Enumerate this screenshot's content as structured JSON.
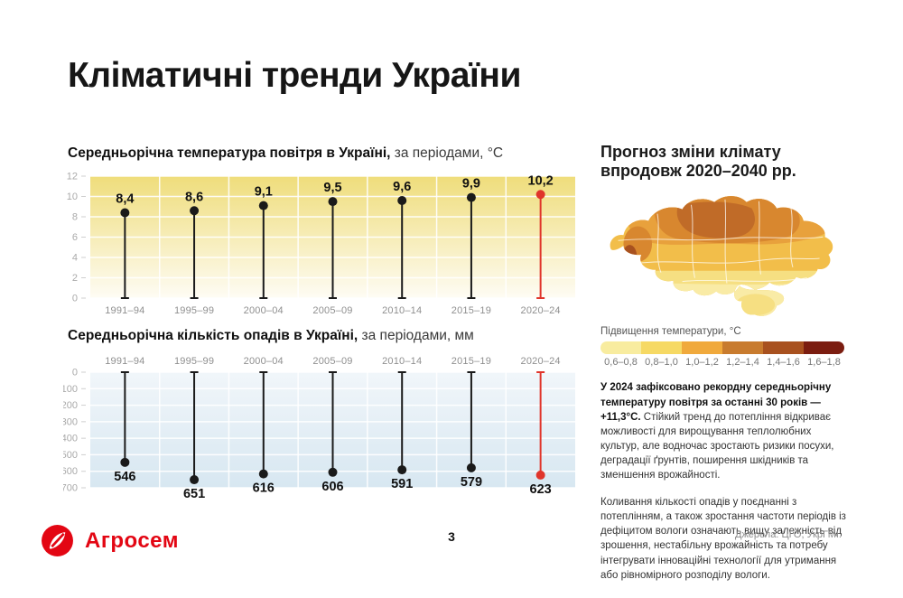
{
  "page": {
    "title": "Кліматичні тренди України",
    "page_number": "3",
    "sources": "Джерела: ЦГО, УкрГМІ."
  },
  "logo": {
    "name": "Агросем",
    "brand_color": "#e30613"
  },
  "charts": {
    "temperature": {
      "title_bold": "Середньорічна температура повітря в Україні,",
      "title_rest": " за періодами, °С"
    },
    "precipitation": {
      "title_bold": "Середньорічна кількість опадів в Україні,",
      "title_rest": " за періодами, мм"
    }
  },
  "forecast": {
    "heading_line1": "Прогноз зміни клімату",
    "heading_line2": "впродовж 2020–2040 рр.",
    "legend_title": "Підвищення температури, °С",
    "legend_labels": [
      "0,6–0,8",
      "0,8–1,0",
      "1,0–1,2",
      "1,2–1,4",
      "1,4–1,6",
      "1,6–1,8"
    ],
    "legend_colors": [
      "#F8EC9F",
      "#F6D964",
      "#F0A93C",
      "#C87B2E",
      "#A8511F",
      "#7B1D10"
    ],
    "para1_bold": "У 2024 зафіксовано рекордну середньорічну температуру повітря за останні 30 років — +11,3°С.",
    "para1_rest": "Стійкий тренд до потепління відкриває можливості для вирощування теплолюбних культур, але водночас зростають ризики посухи, деградації ґрунтів, поширення шкідників та зменшення врожайності.",
    "para2": "Коливання кількості опадів у поєднанні з потеплінням, а також зростання частоти періодів із дефіцитом вологи означають вищу залежність від зрошення, нестабільну врожайність та потребу інтегрувати інноваційні технології для утримання або рівномірного розподілу вологи."
  },
  "chart_data": [
    {
      "type": "lollipop",
      "direction": "up",
      "title": "Середньорічна температура повітря в Україні, за періодами, °С",
      "ylabel": "°С",
      "categories": [
        "1991–94",
        "1995–99",
        "2000–04",
        "2005–09",
        "2010–14",
        "2015–19",
        "2020–24"
      ],
      "values": [
        8.4,
        8.6,
        9.1,
        9.5,
        9.6,
        9.9,
        10.2
      ],
      "labels": [
        "8,4",
        "8,6",
        "9,1",
        "9,5",
        "9,6",
        "9,9",
        "10,2"
      ],
      "ylim": [
        0,
        12
      ],
      "yticks": [
        0,
        2,
        4,
        6,
        8,
        10,
        12
      ],
      "grid": true,
      "highlight_index": 6,
      "highlight_color": "#E0352B",
      "stem_color": "#1A1A1A",
      "bg_gradient": [
        "#EFDD7B",
        "#FEFCF4"
      ]
    },
    {
      "type": "lollipop",
      "direction": "down",
      "title": "Середньорічна кількість опадів в Україні, за періодами, мм",
      "ylabel": "мм",
      "categories": [
        "1991–94",
        "1995–99",
        "2000–04",
        "2005–09",
        "2010–14",
        "2015–19",
        "2020–24"
      ],
      "values": [
        546,
        651,
        616,
        606,
        591,
        579,
        623
      ],
      "labels": [
        "546",
        "651",
        "616",
        "606",
        "591",
        "579",
        "623"
      ],
      "ylim": [
        0,
        700
      ],
      "yticks": [
        0,
        100,
        200,
        300,
        400,
        500,
        600,
        700
      ],
      "grid": true,
      "highlight_index": 6,
      "highlight_color": "#E0352B",
      "stem_color": "#1A1A1A",
      "bg_gradient": [
        "#F1F6FA",
        "#D7E7F1"
      ]
    }
  ]
}
